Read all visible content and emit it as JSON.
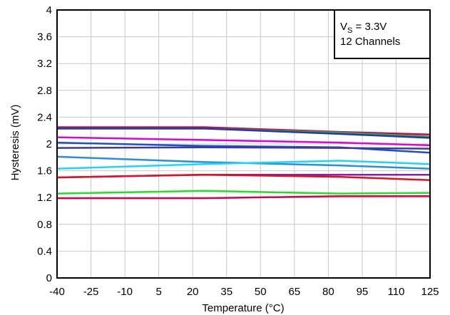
{
  "chart_data": {
    "type": "line",
    "title": "",
    "xlabel": "Temperature (°C)",
    "ylabel": "Hysteresis (mV)",
    "x_ticks": [
      -40,
      -25,
      -10,
      5,
      20,
      35,
      50,
      65,
      80,
      95,
      110,
      125
    ],
    "y_ticks": [
      "0",
      "0.4",
      "0.8",
      "1.2",
      "1.6",
      "2",
      "2.4",
      "2.8",
      "3.2",
      "3.6",
      "4"
    ],
    "xlim": [
      -40,
      125
    ],
    "ylim": [
      0,
      4
    ],
    "grid": true,
    "legend_box": {
      "line1_main": "V",
      "line1_sub": "S",
      "line1_rest": " = 3.3V",
      "line2": "12 Channels",
      "placement": "top-right"
    },
    "series": [
      {
        "color": "#d6004e",
        "x": [
          -40,
          25,
          85,
          125
        ],
        "y": [
          2.25,
          2.25,
          2.18,
          2.14
        ]
      },
      {
        "color": "#2fa84f",
        "x": [
          -40,
          25,
          85,
          125
        ],
        "y": [
          2.23,
          2.23,
          2.17,
          2.11
        ]
      },
      {
        "color": "#1f3fa0",
        "x": [
          -40,
          25,
          85,
          125
        ],
        "y": [
          2.23,
          2.23,
          2.15,
          2.09
        ]
      },
      {
        "color": "#e000e0",
        "x": [
          -40,
          25,
          85,
          125
        ],
        "y": [
          2.1,
          2.06,
          2.02,
          1.98
        ]
      },
      {
        "color": "#1a4fd0",
        "x": [
          -40,
          25,
          85,
          125
        ],
        "y": [
          2.02,
          1.97,
          1.95,
          1.87
        ]
      },
      {
        "color": "#3c3c9c",
        "x": [
          -40,
          25,
          85,
          125
        ],
        "y": [
          1.94,
          1.95,
          1.94,
          1.93
        ]
      },
      {
        "color": "#2a8de0",
        "x": [
          -40,
          25,
          85,
          125
        ],
        "y": [
          1.81,
          1.73,
          1.68,
          1.63
        ]
      },
      {
        "color": "#19d6ff",
        "x": [
          -40,
          25,
          85,
          125
        ],
        "y": [
          1.63,
          1.7,
          1.75,
          1.7
        ]
      },
      {
        "color": "#8a1fa8",
        "x": [
          -40,
          25,
          85,
          125
        ],
        "y": [
          1.5,
          1.54,
          1.54,
          1.54
        ]
      },
      {
        "color": "#e01020",
        "x": [
          -40,
          25,
          85,
          125
        ],
        "y": [
          1.5,
          1.54,
          1.51,
          1.46
        ]
      },
      {
        "color": "#22e022",
        "x": [
          -40,
          25,
          85,
          125
        ],
        "y": [
          1.26,
          1.3,
          1.26,
          1.27
        ]
      },
      {
        "color": "#d6004e",
        "x": [
          -40,
          25,
          85,
          125
        ],
        "y": [
          1.19,
          1.19,
          1.22,
          1.22
        ]
      }
    ]
  }
}
